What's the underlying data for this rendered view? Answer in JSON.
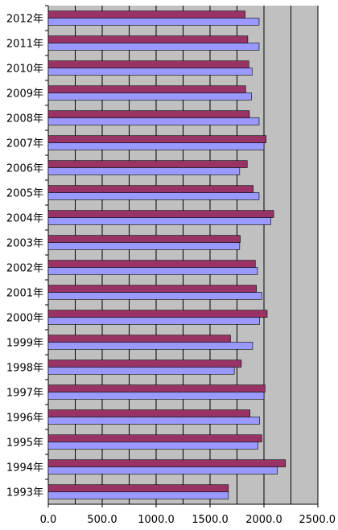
{
  "chart_data": {
    "type": "bar",
    "orientation": "horizontal",
    "categories": [
      "2012年",
      "2011年",
      "2010年",
      "2009年",
      "2008年",
      "2007年",
      "2006年",
      "2005年",
      "2004年",
      "2003年",
      "2002年",
      "2001年",
      "2000年",
      "1999年",
      "1998年",
      "1997年",
      "1996年",
      "1995年",
      "1994年",
      "1993年"
    ],
    "series": [
      {
        "color": "#993366",
        "values": [
          1825,
          1850,
          1860,
          1830,
          1865,
          2020,
          1845,
          1900,
          2090,
          1780,
          1920,
          1930,
          2030,
          1690,
          1790,
          2010,
          1870,
          1980,
          2200,
          1670
        ]
      },
      {
        "color": "#9999ff",
        "values": [
          1955,
          1955,
          1890,
          1885,
          1955,
          2000,
          1775,
          1955,
          2065,
          1775,
          1940,
          1980,
          1960,
          1895,
          1725,
          2000,
          1960,
          1945,
          2125,
          1670
        ]
      }
    ],
    "x_ticks": [
      "0.0",
      "500.0",
      "1000.0",
      "1500.0",
      "2000.0",
      "2500.0"
    ],
    "xlim": [
      0,
      2500
    ],
    "grid": true,
    "plot_background": "#c0c0c0",
    "title": "",
    "xlabel": "",
    "ylabel": ""
  }
}
